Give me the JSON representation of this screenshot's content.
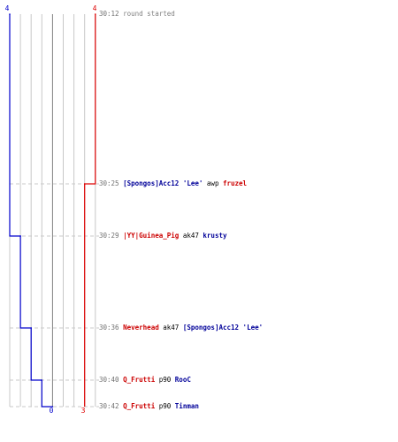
{
  "chart_data": {
    "type": "line",
    "series": [
      {
        "color": "#0000cc",
        "points": [
          {
            "t": "30:12",
            "y": 4
          },
          {
            "t": "30:29",
            "y": 3
          },
          {
            "t": "30:36",
            "y": 2
          },
          {
            "t": "30:40",
            "y": 1
          },
          {
            "t": "30:42",
            "y": 0
          }
        ]
      },
      {
        "color": "#dd0000",
        "points": [
          {
            "t": "30:12",
            "y": 4
          },
          {
            "t": "30:25",
            "y": 3
          }
        ]
      }
    ],
    "top_labels": {
      "blue": "4",
      "red": "4"
    },
    "bottom_labels": {
      "blue": "0",
      "red": "3"
    },
    "y_range": [
      0,
      4
    ]
  },
  "events": [
    {
      "time": "30:12",
      "text": "round started"
    },
    {
      "time": "30:25",
      "killer": "[Spongos]Acc12 'Lee'",
      "killer_team": "blue",
      "weapon": "awp",
      "victim": "fruzel",
      "victim_team": "red"
    },
    {
      "time": "30:29",
      "killer": "|YY|Guinea_Pig",
      "killer_team": "red",
      "weapon": "ak47",
      "victim": "krusty",
      "victim_team": "blue"
    },
    {
      "time": "30:36",
      "killer": "Neverhead",
      "killer_team": "red",
      "weapon": "ak47",
      "victim": "[Spongos]Acc12 'Lee'",
      "victim_team": "blue"
    },
    {
      "time": "30:40",
      "killer": "Q_Frutti",
      "killer_team": "red",
      "weapon": "p90",
      "victim": "RooC",
      "victim_team": "blue"
    },
    {
      "time": "30:42",
      "killer": "Q_Frutti",
      "killer_team": "red",
      "weapon": "p90",
      "victim": "Tinman",
      "victim_team": "blue"
    }
  ]
}
